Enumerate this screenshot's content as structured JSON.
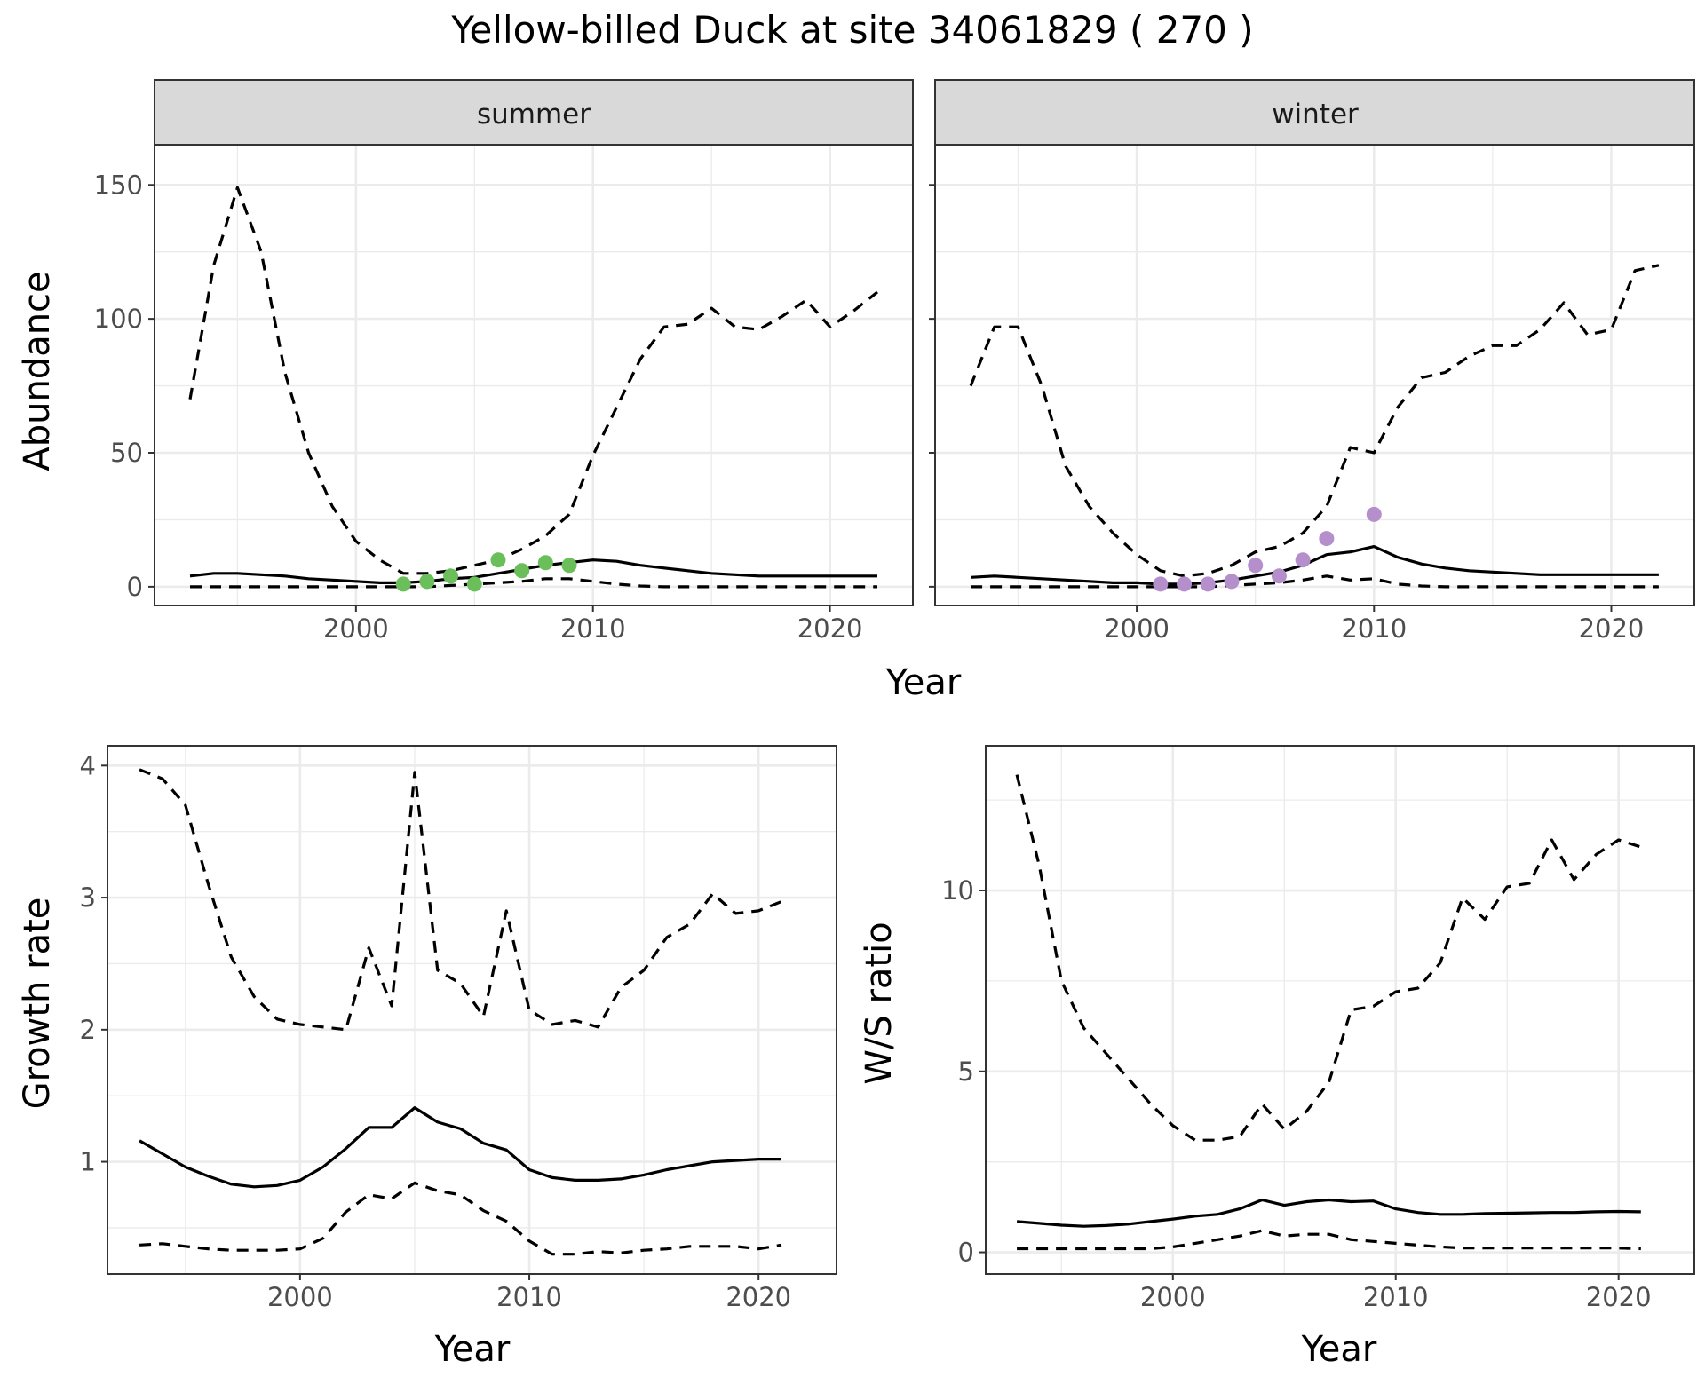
{
  "title": "Yellow-billed Duck at site 34061829 ( 270 )",
  "colors": {
    "summer_points": "#6abf5a",
    "winter_points": "#b48fcc"
  },
  "chart_data": [
    {
      "type": "line",
      "facet": "summer",
      "xlabel": "Year",
      "ylabel": "Abundance",
      "xlim": [
        1991.5,
        2023.5
      ],
      "ylim": [
        -7,
        165
      ],
      "xticks": [
        2000,
        2010,
        2020
      ],
      "yticks": [
        0,
        50,
        100,
        150
      ],
      "grid": true,
      "x": [
        1993,
        1994,
        1995,
        1996,
        1997,
        1998,
        1999,
        2000,
        2001,
        2002,
        2003,
        2004,
        2005,
        2006,
        2007,
        2008,
        2009,
        2010,
        2011,
        2012,
        2013,
        2014,
        2015,
        2016,
        2017,
        2018,
        2019,
        2020,
        2021,
        2022
      ],
      "series": [
        {
          "style": "solid",
          "values": [
            4,
            5,
            5,
            4.5,
            4,
            3,
            2.5,
            2,
            1.5,
            1.5,
            2,
            3,
            3.5,
            5,
            6.5,
            8,
            9,
            10,
            9.5,
            8,
            7,
            6,
            5,
            4.5,
            4,
            4,
            4,
            4,
            4,
            4
          ]
        },
        {
          "style": "dashed",
          "values": [
            70,
            120,
            149,
            125,
            80,
            50,
            30,
            17,
            10,
            5,
            5,
            6,
            8,
            10,
            14,
            19,
            27,
            49,
            67,
            85,
            97,
            98,
            104,
            97,
            96,
            101,
            107,
            97,
            103,
            110
          ]
        },
        {
          "style": "dashed",
          "values": [
            0,
            0,
            0,
            0,
            0,
            0,
            0,
            0,
            0,
            0,
            0,
            0.5,
            1,
            1.5,
            2,
            3,
            3,
            2,
            1,
            0.3,
            0,
            0,
            0,
            0,
            0,
            0,
            0,
            0,
            0,
            0
          ]
        }
      ],
      "points": {
        "x": [
          2002,
          2003,
          2004,
          2005,
          2006,
          2007,
          2008,
          2009
        ],
        "y": [
          1,
          2,
          4,
          1,
          10,
          6,
          9,
          8
        ],
        "color": "#6abf5a"
      }
    },
    {
      "type": "line",
      "facet": "winter",
      "xlabel": "Year",
      "ylabel": "Abundance",
      "xlim": [
        1991.5,
        2023.5
      ],
      "ylim": [
        -7,
        165
      ],
      "xticks": [
        2000,
        2010,
        2020
      ],
      "yticks": [
        0,
        50,
        100,
        150
      ],
      "grid": true,
      "x": [
        1993,
        1994,
        1995,
        1996,
        1997,
        1998,
        1999,
        2000,
        2001,
        2002,
        2003,
        2004,
        2005,
        2006,
        2007,
        2008,
        2009,
        2010,
        2011,
        2012,
        2013,
        2014,
        2015,
        2016,
        2017,
        2018,
        2019,
        2020,
        2021,
        2022
      ],
      "series": [
        {
          "style": "solid",
          "values": [
            3.5,
            4,
            3.5,
            3,
            2.5,
            2,
            1.5,
            1.5,
            1,
            1,
            1.5,
            2.5,
            4,
            5.5,
            8,
            12,
            13,
            15,
            11,
            8.5,
            7,
            6,
            5.5,
            5,
            4.5,
            4.5,
            4.5,
            4.5,
            4.5,
            4.5
          ]
        },
        {
          "style": "dashed",
          "values": [
            75,
            97,
            97,
            75,
            45,
            30,
            20,
            12,
            6,
            4,
            5,
            8,
            13,
            15,
            20,
            30,
            52,
            50,
            67,
            78,
            80,
            86,
            90,
            90,
            96,
            106,
            94,
            96,
            118,
            120
          ]
        },
        {
          "style": "dashed",
          "values": [
            0,
            0,
            0,
            0,
            0,
            0,
            0,
            0,
            0,
            0,
            0,
            0.5,
            1,
            1.5,
            2.5,
            4,
            2.5,
            3,
            1,
            0.3,
            0,
            0,
            0,
            0,
            0,
            0,
            0,
            0,
            0,
            0
          ]
        }
      ],
      "points": {
        "x": [
          2001,
          2002,
          2003,
          2004,
          2005,
          2006,
          2007,
          2008,
          2010
        ],
        "y": [
          1,
          1,
          1,
          2,
          8,
          4,
          10,
          18,
          27
        ],
        "color": "#b48fcc"
      }
    },
    {
      "type": "line",
      "xlabel": "Year",
      "ylabel": "Growth rate",
      "xlim": [
        1991.6,
        2023.4
      ],
      "ylim": [
        0.15,
        4.15
      ],
      "xticks": [
        2000,
        2010,
        2020
      ],
      "yticks": [
        1,
        2,
        3,
        4
      ],
      "grid": true,
      "x": [
        1993,
        1994,
        1995,
        1996,
        1997,
        1998,
        1999,
        2000,
        2001,
        2002,
        2003,
        2004,
        2005,
        2006,
        2007,
        2008,
        2009,
        2010,
        2011,
        2012,
        2013,
        2014,
        2015,
        2016,
        2017,
        2018,
        2019,
        2020,
        2021
      ],
      "series": [
        {
          "style": "solid",
          "values": [
            1.16,
            1.06,
            0.96,
            0.89,
            0.83,
            0.81,
            0.82,
            0.86,
            0.96,
            1.1,
            1.26,
            1.26,
            1.41,
            1.3,
            1.25,
            1.14,
            1.09,
            0.94,
            0.88,
            0.86,
            0.86,
            0.87,
            0.9,
            0.94,
            0.97,
            1.0,
            1.01,
            1.02,
            1.02
          ]
        },
        {
          "style": "dashed",
          "values": [
            3.97,
            3.9,
            3.7,
            3.1,
            2.55,
            2.25,
            2.08,
            2.04,
            2.02,
            2.0,
            2.62,
            2.18,
            3.95,
            2.45,
            2.35,
            2.1,
            2.9,
            2.15,
            2.04,
            2.07,
            2.02,
            2.32,
            2.45,
            2.7,
            2.8,
            3.03,
            2.88,
            2.9,
            2.97
          ]
        },
        {
          "style": "dashed",
          "values": [
            0.37,
            0.38,
            0.36,
            0.34,
            0.33,
            0.33,
            0.33,
            0.34,
            0.42,
            0.62,
            0.75,
            0.72,
            0.84,
            0.78,
            0.75,
            0.63,
            0.55,
            0.4,
            0.3,
            0.3,
            0.32,
            0.31,
            0.33,
            0.34,
            0.36,
            0.36,
            0.36,
            0.34,
            0.37
          ]
        }
      ]
    },
    {
      "type": "line",
      "xlabel": "Year",
      "ylabel": "W/S ratio",
      "xlim": [
        1991.6,
        2023.4
      ],
      "ylim": [
        -0.6,
        14.0
      ],
      "xticks": [
        2000,
        2010,
        2020
      ],
      "yticks": [
        0,
        5,
        10
      ],
      "grid": true,
      "x": [
        1993,
        1994,
        1995,
        1996,
        1997,
        1998,
        1999,
        2000,
        2001,
        2002,
        2003,
        2004,
        2005,
        2006,
        2007,
        2008,
        2009,
        2010,
        2011,
        2012,
        2013,
        2014,
        2015,
        2016,
        2017,
        2018,
        2019,
        2020,
        2021
      ],
      "series": [
        {
          "style": "solid",
          "values": [
            0.85,
            0.8,
            0.75,
            0.72,
            0.74,
            0.78,
            0.85,
            0.92,
            1.0,
            1.05,
            1.2,
            1.45,
            1.3,
            1.4,
            1.45,
            1.4,
            1.42,
            1.2,
            1.1,
            1.05,
            1.05,
            1.07,
            1.08,
            1.09,
            1.1,
            1.1,
            1.12,
            1.13,
            1.12
          ]
        },
        {
          "style": "dashed",
          "values": [
            13.2,
            10.7,
            7.5,
            6.2,
            5.5,
            4.8,
            4.1,
            3.5,
            3.1,
            3.1,
            3.2,
            4.1,
            3.4,
            3.9,
            4.7,
            6.7,
            6.8,
            7.2,
            7.3,
            8.0,
            9.8,
            9.2,
            10.1,
            10.2,
            11.4,
            10.3,
            11.0,
            11.4,
            11.2
          ]
        },
        {
          "style": "dashed",
          "values": [
            0.1,
            0.1,
            0.1,
            0.1,
            0.1,
            0.1,
            0.1,
            0.15,
            0.25,
            0.35,
            0.45,
            0.6,
            0.45,
            0.5,
            0.5,
            0.35,
            0.3,
            0.25,
            0.2,
            0.15,
            0.12,
            0.12,
            0.12,
            0.12,
            0.12,
            0.12,
            0.12,
            0.12,
            0.1
          ]
        }
      ]
    }
  ]
}
